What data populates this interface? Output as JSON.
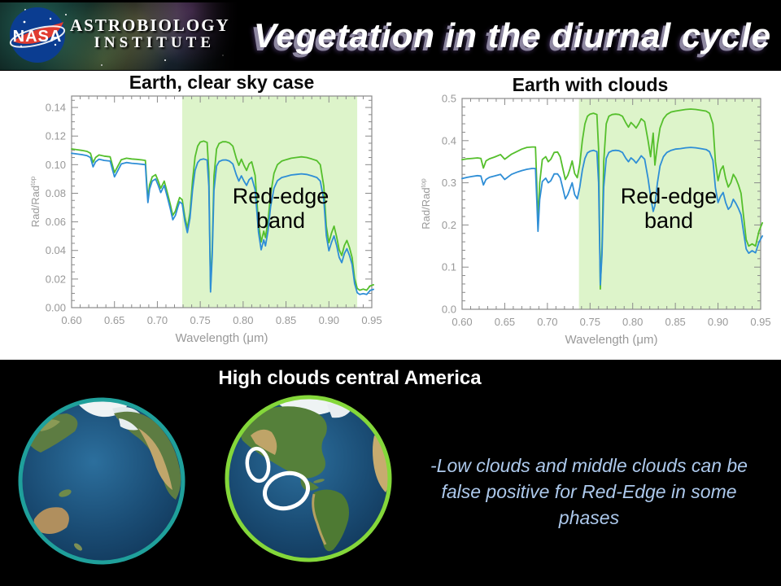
{
  "header": {
    "banner": {
      "nasa_text": "NASA",
      "line1": "ASTROBIOLOGY",
      "line2": "INSTITUTE"
    },
    "title": "Vegetation in the diurnal cycle"
  },
  "colors": {
    "curve_green": "#55bf2c",
    "curve_blue": "#2e8ed6",
    "band_green": "#ddf4ca",
    "axis_gray": "#8a8a8a",
    "tick_text_gray": "#999999",
    "note_blue": "#adc9ec",
    "pacific_ring": "#1fa09b",
    "americas_ring": "#84d73a",
    "nasa_blue": "#0b3d91",
    "nasa_red": "#e03c31"
  },
  "chart_data": [
    {
      "type": "line",
      "title": "Earth, clear sky case",
      "xlabel": "Wavelength (μm)",
      "ylabel": "Rad/Rad^top",
      "xlim": [
        0.6,
        0.95
      ],
      "ylim": [
        0.0,
        0.148
      ],
      "xticks": [
        0.6,
        0.65,
        0.7,
        0.75,
        0.8,
        0.85,
        0.9,
        0.95
      ],
      "xtick_labels": [
        "0.60",
        "0.65",
        "0.70",
        "0.75",
        "0.80",
        "0.85",
        "0.90",
        "0.95"
      ],
      "yticks": [
        0.0,
        0.02,
        0.04,
        0.06,
        0.08,
        0.1,
        0.12,
        0.14
      ],
      "ytick_labels": [
        "0.00",
        "0.02",
        "0.04",
        "0.06",
        "0.08",
        "0.10",
        "0.12",
        "0.14"
      ],
      "xminor": 0.01,
      "yminor": 0.005,
      "grid": false,
      "legend": "none",
      "title_dx": 0,
      "band": {
        "from": 0.729,
        "to": 0.933,
        "color": "#ddf4ca"
      },
      "annotation": {
        "line1": "Red-edge",
        "line2": "band"
      },
      "x": [
        0.6,
        0.606,
        0.612,
        0.618,
        0.622,
        0.625,
        0.628,
        0.632,
        0.638,
        0.645,
        0.65,
        0.654,
        0.658,
        0.664,
        0.67,
        0.676,
        0.682,
        0.686,
        0.6875,
        0.689,
        0.691,
        0.694,
        0.698,
        0.701,
        0.704,
        0.708,
        0.712,
        0.715,
        0.718,
        0.721,
        0.724,
        0.726,
        0.729,
        0.732,
        0.735,
        0.738,
        0.741,
        0.744,
        0.747,
        0.75,
        0.754,
        0.758,
        0.76,
        0.762,
        0.764,
        0.766,
        0.769,
        0.772,
        0.776,
        0.78,
        0.784,
        0.788,
        0.792,
        0.795,
        0.798,
        0.801,
        0.804,
        0.807,
        0.81,
        0.814,
        0.818,
        0.821,
        0.824,
        0.826,
        0.829,
        0.832,
        0.836,
        0.84,
        0.845,
        0.85,
        0.856,
        0.862,
        0.868,
        0.874,
        0.88,
        0.886,
        0.89,
        0.894,
        0.897,
        0.9,
        0.903,
        0.906,
        0.909,
        0.912,
        0.915,
        0.918,
        0.921,
        0.924,
        0.927,
        0.93,
        0.933,
        0.936,
        0.94,
        0.944,
        0.948,
        0.952
      ],
      "series": [
        {
          "name": "green-spectrum",
          "color": "#55bf2c",
          "values": [
            0.111,
            0.1105,
            0.11,
            0.1093,
            0.108,
            0.1015,
            0.105,
            0.1068,
            0.106,
            0.1055,
            0.0945,
            0.099,
            0.1035,
            0.1045,
            0.104,
            0.1037,
            0.1033,
            0.103,
            0.088,
            0.0765,
            0.086,
            0.0915,
            0.093,
            0.0885,
            0.0835,
            0.0885,
            0.0795,
            0.0725,
            0.0645,
            0.0675,
            0.0735,
            0.077,
            0.0755,
            0.0635,
            0.0555,
            0.0665,
            0.089,
            0.1055,
            0.113,
            0.1158,
            0.1165,
            0.1155,
            0.095,
            0.013,
            0.042,
            0.092,
            0.111,
            0.1148,
            0.116,
            0.116,
            0.1152,
            0.113,
            0.1045,
            0.0995,
            0.1038,
            0.0995,
            0.096,
            0.1005,
            0.102,
            0.0925,
            0.0585,
            0.046,
            0.0535,
            0.049,
            0.0605,
            0.079,
            0.094,
            0.1,
            0.1025,
            0.1035,
            0.1045,
            0.105,
            0.1055,
            0.105,
            0.104,
            0.1028,
            0.1,
            0.085,
            0.057,
            0.0455,
            0.052,
            0.057,
            0.0495,
            0.0405,
            0.0365,
            0.0435,
            0.047,
            0.042,
            0.035,
            0.0205,
            0.0135,
            0.0122,
            0.013,
            0.0122,
            0.0152,
            0.016
          ]
        },
        {
          "name": "blue-spectrum",
          "color": "#2e8ed6",
          "values": [
            0.108,
            0.1075,
            0.107,
            0.1063,
            0.105,
            0.0985,
            0.102,
            0.1038,
            0.103,
            0.1025,
            0.0915,
            0.096,
            0.1005,
            0.1015,
            0.101,
            0.1007,
            0.1003,
            0.1,
            0.085,
            0.0735,
            0.083,
            0.0885,
            0.09,
            0.0855,
            0.0805,
            0.0855,
            0.0765,
            0.0695,
            0.0615,
            0.0645,
            0.0705,
            0.074,
            0.0725,
            0.0605,
            0.0525,
            0.0625,
            0.0825,
            0.096,
            0.1015,
            0.1035,
            0.104,
            0.1032,
            0.085,
            0.011,
            0.037,
            0.082,
            0.099,
            0.1022,
            0.1032,
            0.1033,
            0.1025,
            0.1005,
            0.093,
            0.0885,
            0.0922,
            0.0885,
            0.0855,
            0.0895,
            0.091,
            0.0825,
            0.0525,
            0.0405,
            0.0475,
            0.0432,
            0.0535,
            0.0705,
            0.0835,
            0.0888,
            0.091,
            0.0918,
            0.0928,
            0.0932,
            0.0936,
            0.0932,
            0.0922,
            0.091,
            0.0885,
            0.0755,
            0.0505,
            0.0398,
            0.0455,
            0.0502,
            0.0435,
            0.0352,
            0.0315,
            0.0378,
            0.0412,
            0.0365,
            0.0302,
            0.0168,
            0.0105,
            0.0092,
            0.0098,
            0.0092,
            0.012,
            0.0128
          ]
        }
      ]
    },
    {
      "type": "line",
      "title": "Earth with clouds",
      "xlabel": "Wavelength (μm)",
      "ylabel": "Rad/Rad^top",
      "xlim": [
        0.6,
        0.95
      ],
      "ylim": [
        0.0,
        0.5
      ],
      "xticks": [
        0.6,
        0.65,
        0.7,
        0.75,
        0.8,
        0.85,
        0.9,
        0.95
      ],
      "xtick_labels": [
        "0.60",
        "0.65",
        "0.70",
        "0.75",
        "0.80",
        "0.85",
        "0.90",
        "0.95"
      ],
      "yticks": [
        0.0,
        0.1,
        0.2,
        0.3,
        0.4,
        0.5
      ],
      "ytick_labels": [
        "0.0",
        "0.1",
        "0.2",
        "0.3",
        "0.4",
        "0.5"
      ],
      "xminor": 0.01,
      "yminor": 0.02,
      "grid": false,
      "legend": "none",
      "title_dx": -26,
      "band": {
        "from": 0.737,
        "to": 0.95,
        "color": "#ddf4ca"
      },
      "annotation": {
        "line1": "Red-edge",
        "line2": "band"
      },
      "x": [
        0.6,
        0.606,
        0.612,
        0.618,
        0.622,
        0.625,
        0.628,
        0.632,
        0.638,
        0.645,
        0.65,
        0.654,
        0.658,
        0.664,
        0.67,
        0.676,
        0.682,
        0.686,
        0.6875,
        0.689,
        0.691,
        0.694,
        0.698,
        0.701,
        0.704,
        0.708,
        0.712,
        0.715,
        0.718,
        0.721,
        0.724,
        0.726,
        0.729,
        0.732,
        0.735,
        0.738,
        0.741,
        0.744,
        0.747,
        0.75,
        0.754,
        0.758,
        0.76,
        0.762,
        0.764,
        0.766,
        0.769,
        0.772,
        0.776,
        0.78,
        0.784,
        0.788,
        0.792,
        0.795,
        0.798,
        0.801,
        0.804,
        0.807,
        0.81,
        0.814,
        0.818,
        0.821,
        0.824,
        0.826,
        0.829,
        0.832,
        0.836,
        0.84,
        0.845,
        0.85,
        0.856,
        0.862,
        0.868,
        0.874,
        0.88,
        0.886,
        0.89,
        0.894,
        0.897,
        0.9,
        0.903,
        0.906,
        0.909,
        0.912,
        0.915,
        0.918,
        0.921,
        0.924,
        0.927,
        0.93,
        0.933,
        0.936,
        0.94,
        0.944,
        0.948,
        0.952
      ],
      "series": [
        {
          "name": "green-spectrum",
          "color": "#55bf2c",
          "values": [
            0.355,
            0.357,
            0.358,
            0.359,
            0.358,
            0.335,
            0.352,
            0.357,
            0.361,
            0.367,
            0.356,
            0.362,
            0.368,
            0.374,
            0.38,
            0.384,
            0.385,
            0.385,
            0.3,
            0.21,
            0.3,
            0.355,
            0.362,
            0.35,
            0.356,
            0.372,
            0.373,
            0.362,
            0.335,
            0.308,
            0.318,
            0.33,
            0.352,
            0.322,
            0.312,
            0.345,
            0.4,
            0.44,
            0.458,
            0.463,
            0.465,
            0.462,
            0.38,
            0.048,
            0.15,
            0.35,
            0.44,
            0.458,
            0.462,
            0.463,
            0.462,
            0.458,
            0.442,
            0.432,
            0.443,
            0.437,
            0.43,
            0.44,
            0.452,
            0.445,
            0.4,
            0.362,
            0.418,
            0.342,
            0.39,
            0.43,
            0.452,
            0.462,
            0.468,
            0.47,
            0.472,
            0.474,
            0.475,
            0.474,
            0.472,
            0.47,
            0.465,
            0.44,
            0.35,
            0.305,
            0.33,
            0.34,
            0.31,
            0.29,
            0.3,
            0.32,
            0.31,
            0.295,
            0.275,
            0.22,
            0.165,
            0.15,
            0.155,
            0.15,
            0.185,
            0.205
          ]
        },
        {
          "name": "blue-spectrum",
          "color": "#2e8ed6",
          "values": [
            0.31,
            0.313,
            0.315,
            0.317,
            0.316,
            0.295,
            0.308,
            0.313,
            0.316,
            0.32,
            0.308,
            0.314,
            0.32,
            0.325,
            0.329,
            0.332,
            0.334,
            0.334,
            0.26,
            0.185,
            0.26,
            0.303,
            0.311,
            0.3,
            0.305,
            0.321,
            0.321,
            0.312,
            0.288,
            0.262,
            0.272,
            0.283,
            0.3,
            0.272,
            0.262,
            0.29,
            0.33,
            0.358,
            0.371,
            0.375,
            0.377,
            0.374,
            0.3,
            0.058,
            0.13,
            0.29,
            0.358,
            0.372,
            0.376,
            0.377,
            0.376,
            0.372,
            0.358,
            0.35,
            0.359,
            0.354,
            0.347,
            0.355,
            0.364,
            0.356,
            0.31,
            0.268,
            0.232,
            0.246,
            0.3,
            0.34,
            0.362,
            0.372,
            0.377,
            0.38,
            0.381,
            0.383,
            0.384,
            0.383,
            0.381,
            0.379,
            0.374,
            0.353,
            0.288,
            0.253,
            0.268,
            0.277,
            0.253,
            0.237,
            0.244,
            0.261,
            0.251,
            0.239,
            0.224,
            0.183,
            0.143,
            0.133,
            0.139,
            0.134,
            0.159,
            0.174
          ]
        }
      ]
    }
  ],
  "bottom": {
    "heading": "High clouds central America",
    "note_lines": [
      "-Low clouds and middle clouds can be",
      "false positive for Red-Edge in some",
      "phases"
    ],
    "globes": [
      {
        "name": "earth-pacific",
        "border_color": "#1fa09b"
      },
      {
        "name": "earth-americas",
        "border_color": "#84d73a"
      }
    ]
  }
}
